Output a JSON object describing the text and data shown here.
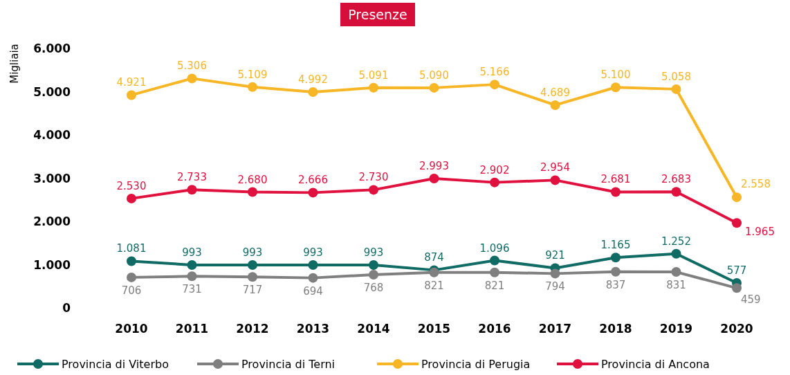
{
  "chart_data": {
    "type": "line",
    "title": "Presenze",
    "ylabel": "Migliaia",
    "categories": [
      "2010",
      "2011",
      "2012",
      "2013",
      "2014",
      "2015",
      "2016",
      "2017",
      "2018",
      "2019",
      "2020"
    ],
    "ylim": [
      0,
      6000
    ],
    "yticks": [
      {
        "value": 0,
        "label": "0"
      },
      {
        "value": 1000,
        "label": "1.000"
      },
      {
        "value": 2000,
        "label": "2.000"
      },
      {
        "value": 3000,
        "label": "3.000"
      },
      {
        "value": 4000,
        "label": "4.000"
      },
      {
        "value": 5000,
        "label": "5.000"
      },
      {
        "value": 6000,
        "label": "6.000"
      }
    ],
    "grid": false,
    "legend": "bottom",
    "marker": "circle",
    "line_style": "solid",
    "series": [
      {
        "name": "Provincia di Viterbo",
        "color": "#0f6b63",
        "values": [
          1081,
          993,
          993,
          993,
          993,
          874,
          1096,
          921,
          1165,
          1252,
          577
        ],
        "value_labels": [
          "1.081",
          "993",
          "993",
          "993",
          "993",
          "874",
          "1.096",
          "921",
          "1.165",
          "1.252",
          "577"
        ]
      },
      {
        "name": "Provincia di Terni",
        "color": "#7f7f7f",
        "values": [
          706,
          731,
          717,
          694,
          768,
          821,
          821,
          794,
          837,
          831,
          459
        ],
        "value_labels": [
          "706",
          "731",
          "717",
          "694",
          "768",
          "821",
          "821",
          "794",
          "837",
          "831",
          "459"
        ]
      },
      {
        "name": "Provincia di Perugia",
        "color": "#f6b625",
        "values": [
          4921,
          5306,
          5109,
          4992,
          5091,
          5090,
          5166,
          4689,
          5100,
          5058,
          2558
        ],
        "value_labels": [
          "4.921",
          "5.306",
          "5.109",
          "4.992",
          "5.091",
          "5.090",
          "5.166",
          "4.689",
          "5.100",
          "5.058",
          "2.558"
        ]
      },
      {
        "name": "Provincia di Ancona",
        "color": "#e0103f",
        "values": [
          2530,
          2733,
          2680,
          2666,
          2730,
          2993,
          2902,
          2954,
          2681,
          2683,
          1965
        ],
        "value_labels": [
          "2.530",
          "2.733",
          "2.680",
          "2.666",
          "2.730",
          "2.993",
          "2.902",
          "2.954",
          "2.681",
          "2.683",
          "1.965"
        ]
      }
    ]
  }
}
